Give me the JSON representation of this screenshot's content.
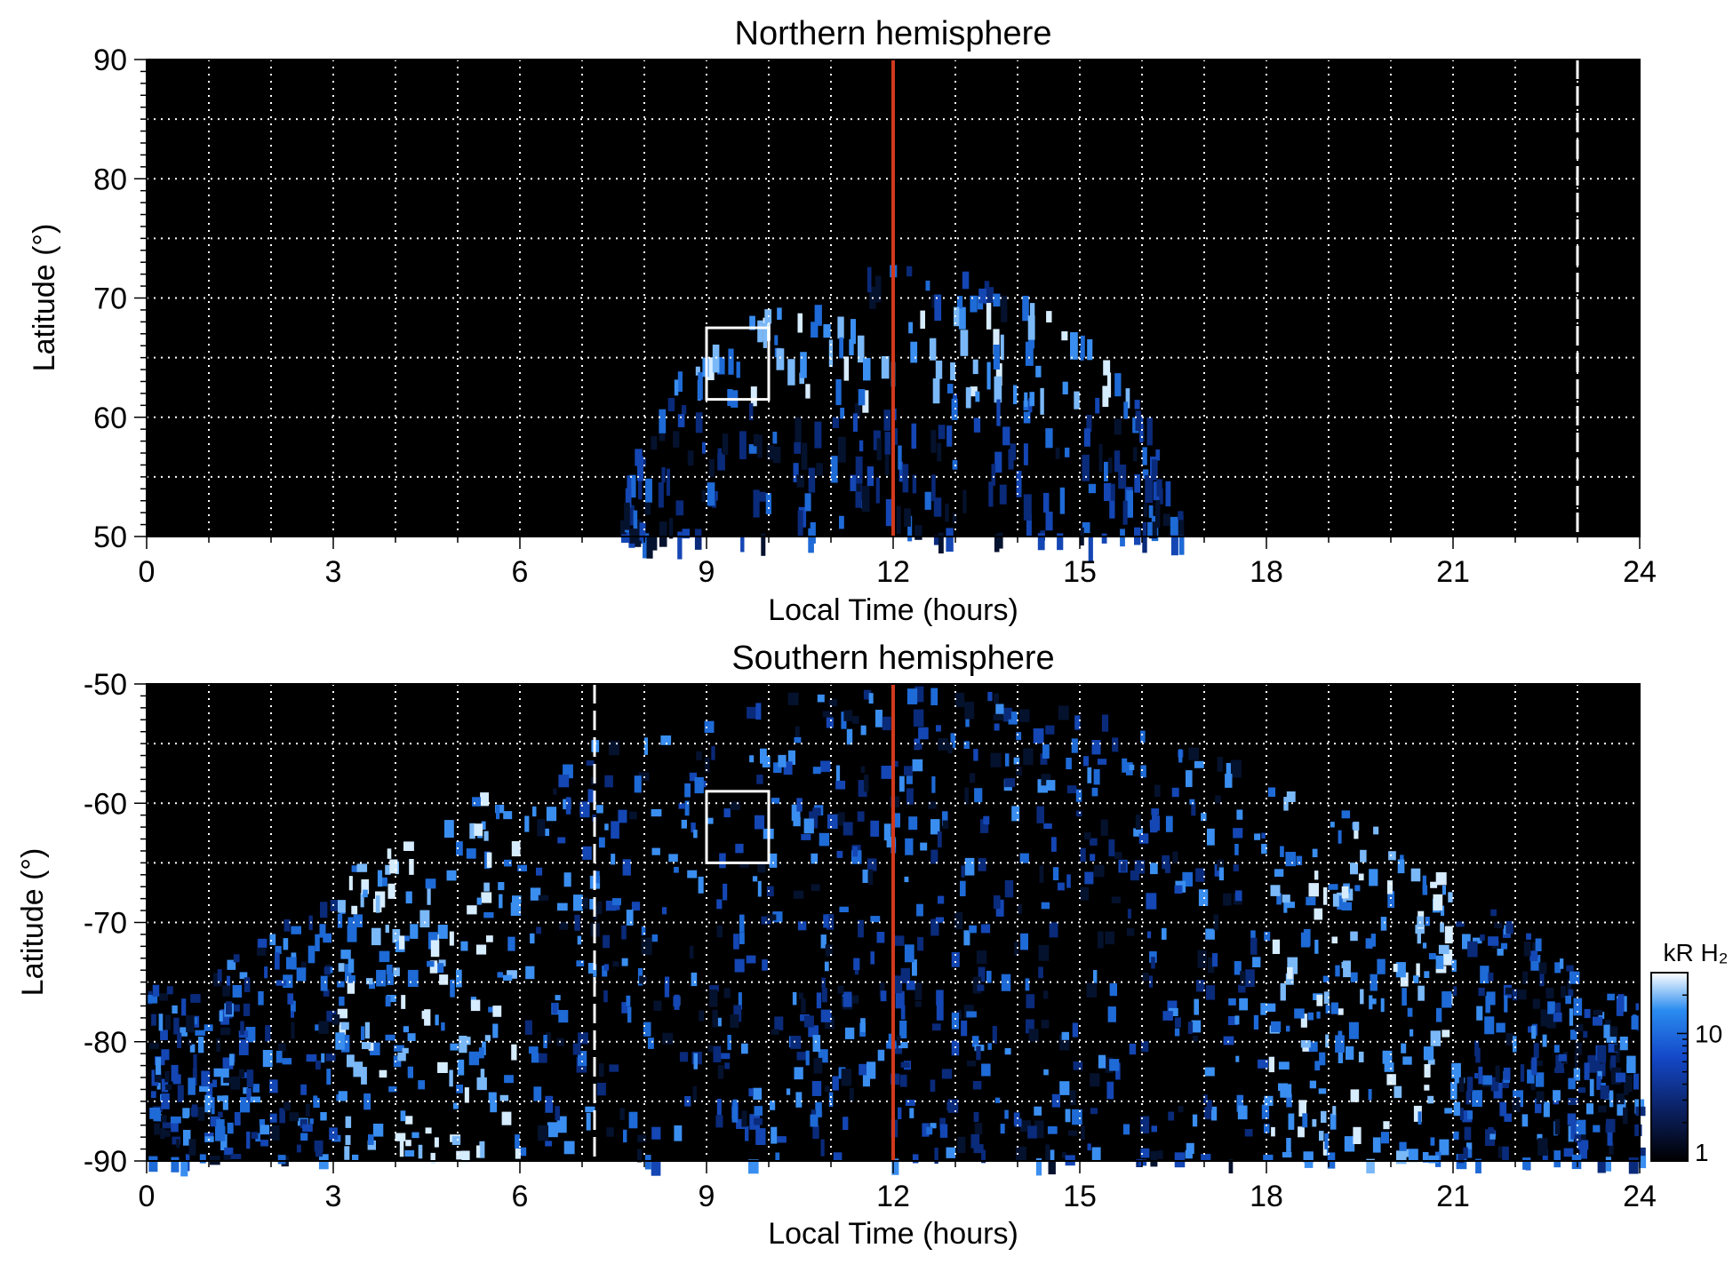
{
  "chart_data": [
    {
      "type": "heatmap",
      "title": "Northern hemisphere",
      "xlabel": "Local Time (hours)",
      "ylabel": "Latitude (°)",
      "xlim": [
        0,
        24
      ],
      "ylim": [
        50,
        90
      ],
      "xticks": [
        "0",
        "3",
        "6",
        "9",
        "12",
        "15",
        "18",
        "21",
        "24"
      ],
      "yticks": [
        "50",
        "60",
        "70",
        "80",
        "90"
      ],
      "grid": true,
      "vertical_markers": [
        {
          "x": 12,
          "style": "solid",
          "color": "#d03a1c"
        },
        {
          "x": 23,
          "style": "dashed",
          "color": "#ffffff"
        }
      ],
      "box": {
        "x": [
          9,
          10
        ],
        "y": [
          61.5,
          67.5
        ]
      },
      "emission_region": {
        "lt_range": [
          7.6,
          16.6
        ],
        "equatorward_lat": 50,
        "poleward_lat_at_noon": 73,
        "bright_oval_lat": [
          62,
          70
        ]
      }
    },
    {
      "type": "heatmap",
      "title": "Southern hemisphere",
      "xlabel": "Local Time (hours)",
      "ylabel": "Latitude (°)",
      "xlim": [
        0,
        24
      ],
      "ylim": [
        -90,
        -50
      ],
      "xticks": [
        "0",
        "3",
        "6",
        "9",
        "12",
        "15",
        "18",
        "21",
        "24"
      ],
      "yticks": [
        "-50",
        "-60",
        "-70",
        "-80",
        "-90"
      ],
      "grid": true,
      "vertical_markers": [
        {
          "x": 12,
          "style": "solid",
          "color": "#d03a1c"
        },
        {
          "x": 7.2,
          "style": "dashed",
          "color": "#ffffff"
        }
      ],
      "box": {
        "x": [
          9,
          10
        ],
        "y": [
          -65,
          -59
        ]
      },
      "emission_region": {
        "lt_range": [
          0,
          24
        ],
        "equatorward_lat_at_0_and_24": -75,
        "equatorward_lat_at_noon": -50,
        "bright_oval_lt": [
          [
            3,
            6
          ],
          [
            18,
            21
          ]
        ]
      }
    }
  ],
  "colorbar": {
    "label": "kR H₂",
    "ticks": [
      "1",
      "10"
    ],
    "range": [
      1,
      30
    ],
    "scale": "log",
    "colors": [
      "#000000",
      "#0a1e5a",
      "#1448c8",
      "#2a8cf0",
      "#ffffff"
    ]
  }
}
